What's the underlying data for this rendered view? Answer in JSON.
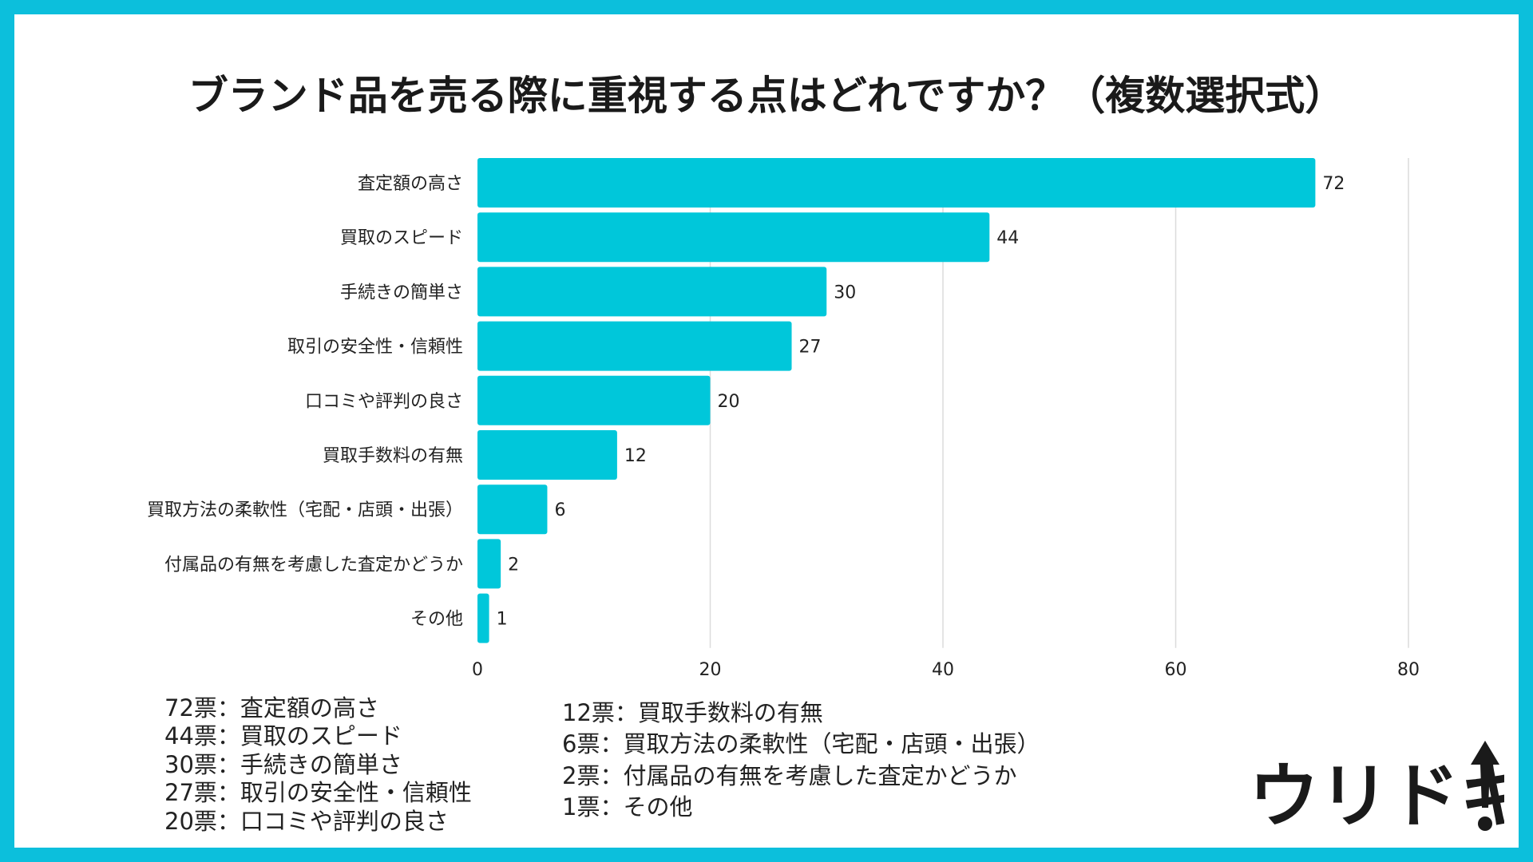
{
  "colors": {
    "frame": "#0cbfdc",
    "bar": "#00c7da",
    "grid": "#dcdcdc",
    "text": "#222222"
  },
  "chart_data": {
    "type": "bar",
    "orientation": "horizontal",
    "title": "ブランド品を売る際に重視する点はどれですか？（複数選択式）",
    "categories": [
      "査定額の高さ",
      "買取のスピード",
      "手続きの簡単さ",
      "取引の安全性・信頼性",
      "口コミや評判の良さ",
      "買取手数料の有無",
      "買取方法の柔軟性（宅配・店頭・出張）",
      "付属品の有無を考慮した査定かどうか",
      "その他"
    ],
    "values": [
      72,
      44,
      30,
      27,
      20,
      12,
      6,
      2,
      1
    ],
    "xlim": [
      0,
      80
    ],
    "xticks": [
      "0",
      "20",
      "40",
      "60",
      "80"
    ],
    "grid": true,
    "data_labels": true
  },
  "legend_left": [
    "72票：査定額の高さ",
    "44票：買取のスピード",
    "30票：手続きの簡単さ",
    "27票：取引の安全性・信頼性",
    "20票：口コミや評判の良さ"
  ],
  "legend_right": [
    "12票：買取手数料の有無",
    "6票：買取方法の柔軟性（宅配・店頭・出張）",
    "2票：付属品の有無を考慮した査定かどうか",
    "1票：その他"
  ],
  "logo": {
    "text": "ウリドキ"
  }
}
